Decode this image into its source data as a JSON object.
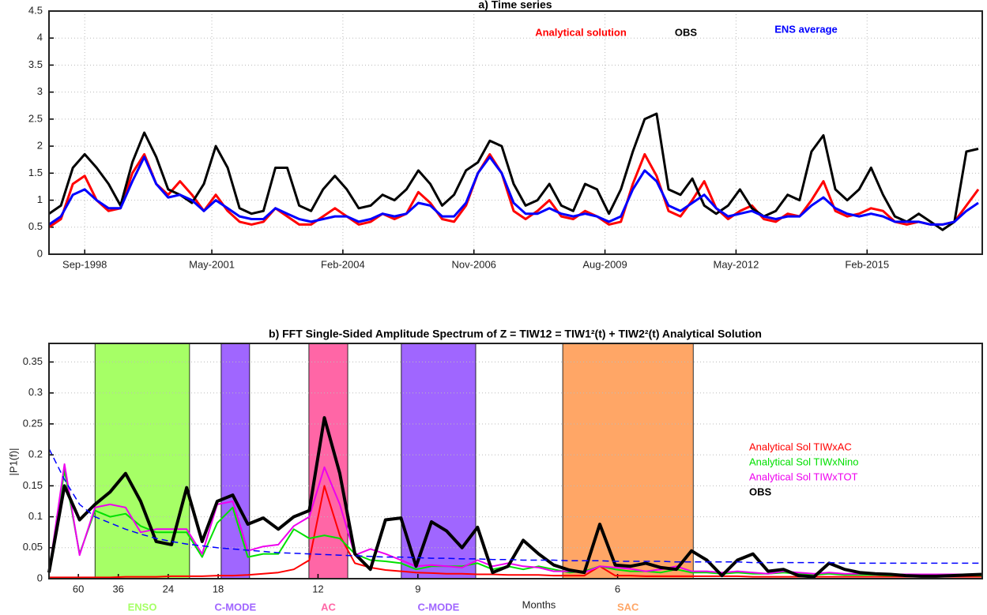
{
  "chart_data": [
    {
      "type": "line",
      "title": "a) Time series",
      "legend": "top",
      "grid": true,
      "x": [
        "Dec-1997",
        "Mar-1998",
        "Jun-1998",
        "Sep-1998",
        "Dec-1998",
        "Mar-1999",
        "Jun-1999",
        "Sep-1999",
        "Dec-1999",
        "Mar-2000",
        "Jun-2000",
        "Sep-2000",
        "Dec-2000",
        "Mar-2001",
        "Jun-2001",
        "Sep-2001",
        "Dec-2001",
        "Mar-2002",
        "Jun-2002",
        "Sep-2002",
        "Dec-2002",
        "Mar-2003",
        "Jun-2003",
        "Sep-2003",
        "Dec-2003",
        "Mar-2004",
        "Jun-2004",
        "Sep-2004",
        "Dec-2004",
        "Mar-2005",
        "Jun-2005",
        "Sep-2005",
        "Dec-2005",
        "Mar-2006",
        "Jun-2006",
        "Sep-2006",
        "Dec-2006",
        "Mar-2007",
        "Jun-2007",
        "Sep-2007",
        "Dec-2007",
        "Mar-2008",
        "Jun-2008",
        "Sep-2008",
        "Dec-2008",
        "Mar-2009",
        "Jun-2009",
        "Sep-2009",
        "Dec-2009",
        "Mar-2010",
        "Jun-2010",
        "Sep-2010",
        "Dec-2010",
        "Mar-2011",
        "Jun-2011",
        "Sep-2011",
        "Dec-2011",
        "Mar-2012",
        "Jun-2012",
        "Sep-2012",
        "Dec-2012",
        "Mar-2013",
        "Jun-2013",
        "Sep-2013",
        "Dec-2013",
        "Mar-2014",
        "Jun-2014",
        "Sep-2014",
        "Dec-2014",
        "Mar-2015",
        "Jun-2015",
        "Sep-2015",
        "Dec-2015",
        "Mar-2016",
        "Jun-2016",
        "Sep-2016",
        "Dec-2016",
        "Mar-2017",
        "Jun-2017"
      ],
      "xlim": [
        "Dec-1997",
        "Jul-2017"
      ],
      "xticks": [
        "Sep-1998",
        "May-2001",
        "Feb-2004",
        "Nov-2006",
        "Aug-2009",
        "May-2012",
        "Feb-2015"
      ],
      "ylim": [
        0,
        4.5
      ],
      "yticks": [
        0,
        0.5,
        1,
        1.5,
        2,
        2.5,
        3,
        3.5,
        4,
        4.5
      ],
      "series": [
        {
          "name": "Analytical solution",
          "color": "#ff0000",
          "line_width": 3,
          "values": [
            0.5,
            0.65,
            1.3,
            1.45,
            1.0,
            0.8,
            0.85,
            1.5,
            1.85,
            1.3,
            1.1,
            1.35,
            1.1,
            0.8,
            1.1,
            0.8,
            0.6,
            0.55,
            0.6,
            0.85,
            0.7,
            0.55,
            0.55,
            0.7,
            0.85,
            0.7,
            0.55,
            0.6,
            0.75,
            0.65,
            0.75,
            1.15,
            0.95,
            0.65,
            0.6,
            0.9,
            1.5,
            1.85,
            1.5,
            0.8,
            0.65,
            0.8,
            1.0,
            0.7,
            0.65,
            0.8,
            0.7,
            0.55,
            0.6,
            1.3,
            1.85,
            1.45,
            0.8,
            0.7,
            1.0,
            1.35,
            0.85,
            0.65,
            0.8,
            0.9,
            0.65,
            0.6,
            0.75,
            0.7,
            1.0,
            1.35,
            0.8,
            0.7,
            0.75,
            0.85,
            0.8,
            0.6,
            0.55,
            0.6,
            0.55,
            0.55,
            0.6,
            0.9,
            1.2
          ]
        },
        {
          "name": "OBS",
          "color": "#000000",
          "line_width": 3,
          "values": [
            0.75,
            0.9,
            1.6,
            1.85,
            1.6,
            1.3,
            0.9,
            1.7,
            2.25,
            1.8,
            1.2,
            1.1,
            0.95,
            1.3,
            2.0,
            1.6,
            0.85,
            0.75,
            0.8,
            1.6,
            1.6,
            0.9,
            0.8,
            1.2,
            1.45,
            1.2,
            0.85,
            0.9,
            1.1,
            1.0,
            1.2,
            1.55,
            1.3,
            0.9,
            1.1,
            1.55,
            1.7,
            2.1,
            2.0,
            1.3,
            0.9,
            1.0,
            1.3,
            0.9,
            0.8,
            1.3,
            1.2,
            0.75,
            1.2,
            1.9,
            2.5,
            2.6,
            1.2,
            1.1,
            1.4,
            0.9,
            0.75,
            0.9,
            1.2,
            0.85,
            0.7,
            0.8,
            1.1,
            1.0,
            1.9,
            2.2,
            1.2,
            1.0,
            1.2,
            1.6,
            1.1,
            0.7,
            0.6,
            0.75,
            0.6,
            0.45,
            0.6,
            1.9,
            1.95
          ]
        },
        {
          "name": "ENS average",
          "color": "#0000ff",
          "line_width": 3,
          "values": [
            0.55,
            0.7,
            1.1,
            1.2,
            1.0,
            0.85,
            0.85,
            1.35,
            1.8,
            1.3,
            1.05,
            1.1,
            1.0,
            0.8,
            1.0,
            0.85,
            0.7,
            0.65,
            0.65,
            0.85,
            0.75,
            0.65,
            0.6,
            0.65,
            0.7,
            0.7,
            0.6,
            0.65,
            0.75,
            0.7,
            0.75,
            0.95,
            0.9,
            0.7,
            0.7,
            0.95,
            1.5,
            1.8,
            1.5,
            0.95,
            0.75,
            0.75,
            0.85,
            0.75,
            0.7,
            0.75,
            0.7,
            0.6,
            0.7,
            1.2,
            1.55,
            1.35,
            0.9,
            0.8,
            0.95,
            1.1,
            0.85,
            0.7,
            0.75,
            0.8,
            0.7,
            0.65,
            0.7,
            0.7,
            0.9,
            1.05,
            0.85,
            0.75,
            0.7,
            0.75,
            0.7,
            0.6,
            0.6,
            0.6,
            0.55,
            0.55,
            0.6,
            0.8,
            0.95
          ]
        }
      ]
    },
    {
      "type": "line",
      "title": "b) FFT Single-Sided Amplitude Spectrum of Z = TIW12 = TIW1²(t) + TIW2²(t) Analytical Solution",
      "xlabel": "Months",
      "ylabel": "|P1(f)|",
      "legend": "right",
      "grid": true,
      "x": [
        0.0085,
        0.0128,
        0.017,
        0.0213,
        0.0255,
        0.0298,
        0.034,
        0.0383,
        0.0426,
        0.0468,
        0.0511,
        0.0553,
        0.0596,
        0.0638,
        0.0681,
        0.0723,
        0.0766,
        0.0809,
        0.0851,
        0.0894,
        0.0936,
        0.0979,
        0.1021,
        0.1064,
        0.1106,
        0.1149,
        0.1191,
        0.1234,
        0.1277,
        0.1319,
        0.1362,
        0.1404,
        0.1447,
        0.1489,
        0.1532,
        0.1574,
        0.1617,
        0.166,
        0.1702,
        0.1745,
        0.1787,
        0.183,
        0.1872,
        0.1915,
        0.1957,
        0.2,
        0.2043,
        0.2085,
        0.2128,
        0.217,
        0.2213,
        0.2255,
        0.2298,
        0.234,
        0.2383,
        0.2426,
        0.2468,
        0.2511,
        0.2553,
        0.2596,
        0.2638,
        0.2681
      ],
      "xlim": [
        0.0085,
        0.2681
      ],
      "xticks": [
        {
          "value": 0.016667,
          "label": "60"
        },
        {
          "value": 0.027778,
          "label": "36"
        },
        {
          "value": 0.041667,
          "label": "24"
        },
        {
          "value": 0.055556,
          "label": "18"
        },
        {
          "value": 0.083333,
          "label": "12"
        },
        {
          "value": 0.111111,
          "label": "9"
        },
        {
          "value": 0.166667,
          "label": "6"
        }
      ],
      "ylim": [
        0,
        0.38
      ],
      "yticks": [
        0,
        0.05,
        0.1,
        0.15,
        0.2,
        0.25,
        0.3,
        0.35
      ],
      "bands": [
        {
          "label": "ENSO",
          "range": [
            0.0213,
            0.0476
          ],
          "color": "#a6ff66"
        },
        {
          "label": "C-MODE",
          "range": [
            0.0564,
            0.0643
          ],
          "color": "#a066ff"
        },
        {
          "label": "AC",
          "range": [
            0.0808,
            0.0916
          ],
          "color": "#ff66a6"
        },
        {
          "label": "C-MODE",
          "range": [
            0.1065,
            0.1272
          ],
          "color": "#a066ff"
        },
        {
          "label": "SAC",
          "range": [
            0.1514,
            0.1877
          ],
          "color": "#ffa666"
        }
      ],
      "series": [
        {
          "name": "Analytical Sol TIWxAC",
          "color": "#ff0000",
          "line_width": 2,
          "values": [
            0.002,
            0.002,
            0.002,
            0.002,
            0.002,
            0.003,
            0.003,
            0.003,
            0.004,
            0.004,
            0.004,
            0.005,
            0.005,
            0.006,
            0.008,
            0.01,
            0.015,
            0.03,
            0.15,
            0.07,
            0.025,
            0.018,
            0.014,
            0.012,
            0.01,
            0.009,
            0.008,
            0.008,
            0.007,
            0.007,
            0.006,
            0.006,
            0.006,
            0.005,
            0.005,
            0.005,
            0.02,
            0.005,
            0.005,
            0.004,
            0.004,
            0.004,
            0.004,
            0.004,
            0.004,
            0.004,
            0.003,
            0.003,
            0.003,
            0.003,
            0.003,
            0.003,
            0.003,
            0.003,
            0.003,
            0.003,
            0.003,
            0.003,
            0.003,
            0.003,
            0.003,
            0.003
          ]
        },
        {
          "name": "Analytical Sol TIWxNino",
          "color": "#00e000",
          "line_width": 2,
          "values": [
            0.01,
            0.175,
            0.04,
            0.11,
            0.1,
            0.105,
            0.085,
            0.075,
            0.075,
            0.075,
            0.035,
            0.09,
            0.115,
            0.035,
            0.04,
            0.04,
            0.08,
            0.065,
            0.07,
            0.065,
            0.04,
            0.03,
            0.028,
            0.025,
            0.015,
            0.02,
            0.02,
            0.02,
            0.025,
            0.015,
            0.02,
            0.015,
            0.02,
            0.015,
            0.01,
            0.012,
            0.02,
            0.015,
            0.012,
            0.012,
            0.01,
            0.015,
            0.01,
            0.01,
            0.008,
            0.01,
            0.008,
            0.008,
            0.01,
            0.008,
            0.006,
            0.008,
            0.006,
            0.006,
            0.006,
            0.005,
            0.005,
            0.006,
            0.005,
            0.005,
            0.005,
            0.005
          ]
        },
        {
          "name": "Analytical Sol TIWxTOT",
          "color": "#ee00ee",
          "line_width": 2,
          "values": [
            0.01,
            0.185,
            0.038,
            0.115,
            0.12,
            0.115,
            0.075,
            0.08,
            0.08,
            0.08,
            0.04,
            0.12,
            0.125,
            0.045,
            0.052,
            0.055,
            0.085,
            0.1,
            0.18,
            0.12,
            0.038,
            0.048,
            0.04,
            0.03,
            0.02,
            0.022,
            0.02,
            0.018,
            0.03,
            0.02,
            0.025,
            0.02,
            0.018,
            0.012,
            0.012,
            0.01,
            0.02,
            0.018,
            0.016,
            0.012,
            0.015,
            0.02,
            0.012,
            0.012,
            0.01,
            0.012,
            0.01,
            0.008,
            0.012,
            0.01,
            0.008,
            0.01,
            0.008,
            0.008,
            0.008,
            0.007,
            0.007,
            0.007,
            0.007,
            0.007,
            0.007,
            0.007
          ]
        },
        {
          "name": "OBS",
          "color": "#000000",
          "line_width": 4,
          "values": [
            0.01,
            0.15,
            0.095,
            0.12,
            0.14,
            0.17,
            0.125,
            0.06,
            0.055,
            0.147,
            0.06,
            0.125,
            0.135,
            0.088,
            0.098,
            0.08,
            0.1,
            0.11,
            0.26,
            0.17,
            0.04,
            0.015,
            0.095,
            0.098,
            0.02,
            0.092,
            0.077,
            0.05,
            0.083,
            0.01,
            0.02,
            0.062,
            0.04,
            0.022,
            0.014,
            0.01,
            0.088,
            0.022,
            0.02,
            0.025,
            0.018,
            0.015,
            0.045,
            0.03,
            0.005,
            0.03,
            0.04,
            0.012,
            0.015,
            0.005,
            0.003,
            0.025,
            0.015,
            0.01,
            0.008,
            0.007,
            0.005,
            0.004,
            0.004,
            0.005,
            0.006,
            0.007
          ]
        },
        {
          "color": "#0000ff",
          "line_width": 1.5,
          "dashed": true,
          "values": [
            0.21,
            0.16,
            0.12,
            0.1,
            0.09,
            0.08,
            0.072,
            0.065,
            0.06,
            0.056,
            0.053,
            0.05,
            0.048,
            0.046,
            0.044,
            0.042,
            0.041,
            0.04,
            0.039,
            0.038,
            0.037,
            0.036,
            0.035,
            0.035,
            0.034,
            0.033,
            0.033,
            0.032,
            0.032,
            0.031,
            0.031,
            0.03,
            0.03,
            0.03,
            0.029,
            0.029,
            0.029,
            0.028,
            0.028,
            0.028,
            0.028,
            0.027,
            0.027,
            0.027,
            0.027,
            0.027,
            0.026,
            0.026,
            0.026,
            0.026,
            0.026,
            0.026,
            0.025,
            0.025,
            0.025,
            0.025,
            0.025,
            0.025,
            0.025,
            0.025,
            0.025,
            0.025
          ]
        }
      ]
    }
  ]
}
